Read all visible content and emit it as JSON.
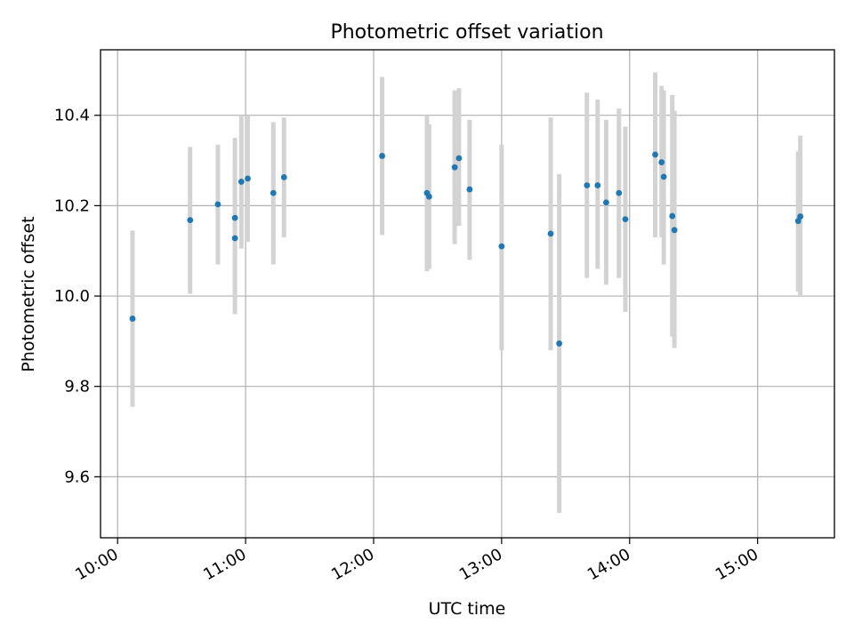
{
  "chart_data": {
    "type": "scatter",
    "title": "Photometric offset variation",
    "xlabel": "UTC time",
    "ylabel": "Photometric offset",
    "xlim": [
      "09:52",
      "15:36"
    ],
    "ylim": [
      9.465,
      10.545
    ],
    "x_ticks": [
      "10:00",
      "11:00",
      "12:00",
      "13:00",
      "14:00",
      "15:00"
    ],
    "y_ticks": [
      9.6,
      9.8,
      10.0,
      10.2,
      10.4
    ],
    "grid": true,
    "colors": {
      "marker": "#1f77b4",
      "errorbar": "#d3d3d3",
      "grid": "#b0b0b0"
    },
    "points": [
      {
        "t": "10:07",
        "y": 9.95,
        "lo": 9.755,
        "hi": 10.145
      },
      {
        "t": "10:34",
        "y": 10.168,
        "lo": 10.005,
        "hi": 10.33
      },
      {
        "t": "10:47",
        "y": 10.203,
        "lo": 10.07,
        "hi": 10.335
      },
      {
        "t": "10:55",
        "y": 10.128,
        "lo": 9.96,
        "hi": 10.295
      },
      {
        "t": "10:55",
        "y": 10.173,
        "lo": 9.995,
        "hi": 10.35
      },
      {
        "t": "10:58",
        "y": 10.253,
        "lo": 10.105,
        "hi": 10.4
      },
      {
        "t": "11:01",
        "y": 10.26,
        "lo": 10.12,
        "hi": 10.4
      },
      {
        "t": "11:13",
        "y": 10.228,
        "lo": 10.07,
        "hi": 10.385
      },
      {
        "t": "11:18",
        "y": 10.263,
        "lo": 10.13,
        "hi": 10.395
      },
      {
        "t": "12:04",
        "y": 10.31,
        "lo": 10.135,
        "hi": 10.485
      },
      {
        "t": "12:25",
        "y": 10.228,
        "lo": 10.055,
        "hi": 10.4
      },
      {
        "t": "12:26",
        "y": 10.22,
        "lo": 10.06,
        "hi": 10.38
      },
      {
        "t": "12:38",
        "y": 10.285,
        "lo": 10.115,
        "hi": 10.455
      },
      {
        "t": "12:40",
        "y": 10.305,
        "lo": 10.155,
        "hi": 10.46
      },
      {
        "t": "12:45",
        "y": 10.236,
        "lo": 10.08,
        "hi": 10.39
      },
      {
        "t": "13:00",
        "y": 10.11,
        "lo": 9.88,
        "hi": 10.335
      },
      {
        "t": "13:23",
        "y": 10.138,
        "lo": 9.88,
        "hi": 10.395
      },
      {
        "t": "13:27",
        "y": 9.895,
        "lo": 9.52,
        "hi": 10.27
      },
      {
        "t": "13:40",
        "y": 10.245,
        "lo": 10.04,
        "hi": 10.45
      },
      {
        "t": "13:45",
        "y": 10.245,
        "lo": 10.06,
        "hi": 10.435
      },
      {
        "t": "13:49",
        "y": 10.207,
        "lo": 10.025,
        "hi": 10.39
      },
      {
        "t": "13:55",
        "y": 10.228,
        "lo": 10.04,
        "hi": 10.415
      },
      {
        "t": "13:58",
        "y": 10.17,
        "lo": 9.965,
        "hi": 10.375
      },
      {
        "t": "14:12",
        "y": 10.313,
        "lo": 10.13,
        "hi": 10.495
      },
      {
        "t": "14:15",
        "y": 10.296,
        "lo": 10.13,
        "hi": 10.465
      },
      {
        "t": "14:16",
        "y": 10.264,
        "lo": 10.07,
        "hi": 10.455
      },
      {
        "t": "14:20",
        "y": 10.177,
        "lo": 9.91,
        "hi": 10.445
      },
      {
        "t": "14:21",
        "y": 10.146,
        "lo": 9.885,
        "hi": 10.41
      },
      {
        "t": "15:19",
        "y": 10.166,
        "lo": 10.01,
        "hi": 10.32
      },
      {
        "t": "15:20",
        "y": 10.176,
        "lo": 10.0,
        "hi": 10.355
      }
    ]
  }
}
